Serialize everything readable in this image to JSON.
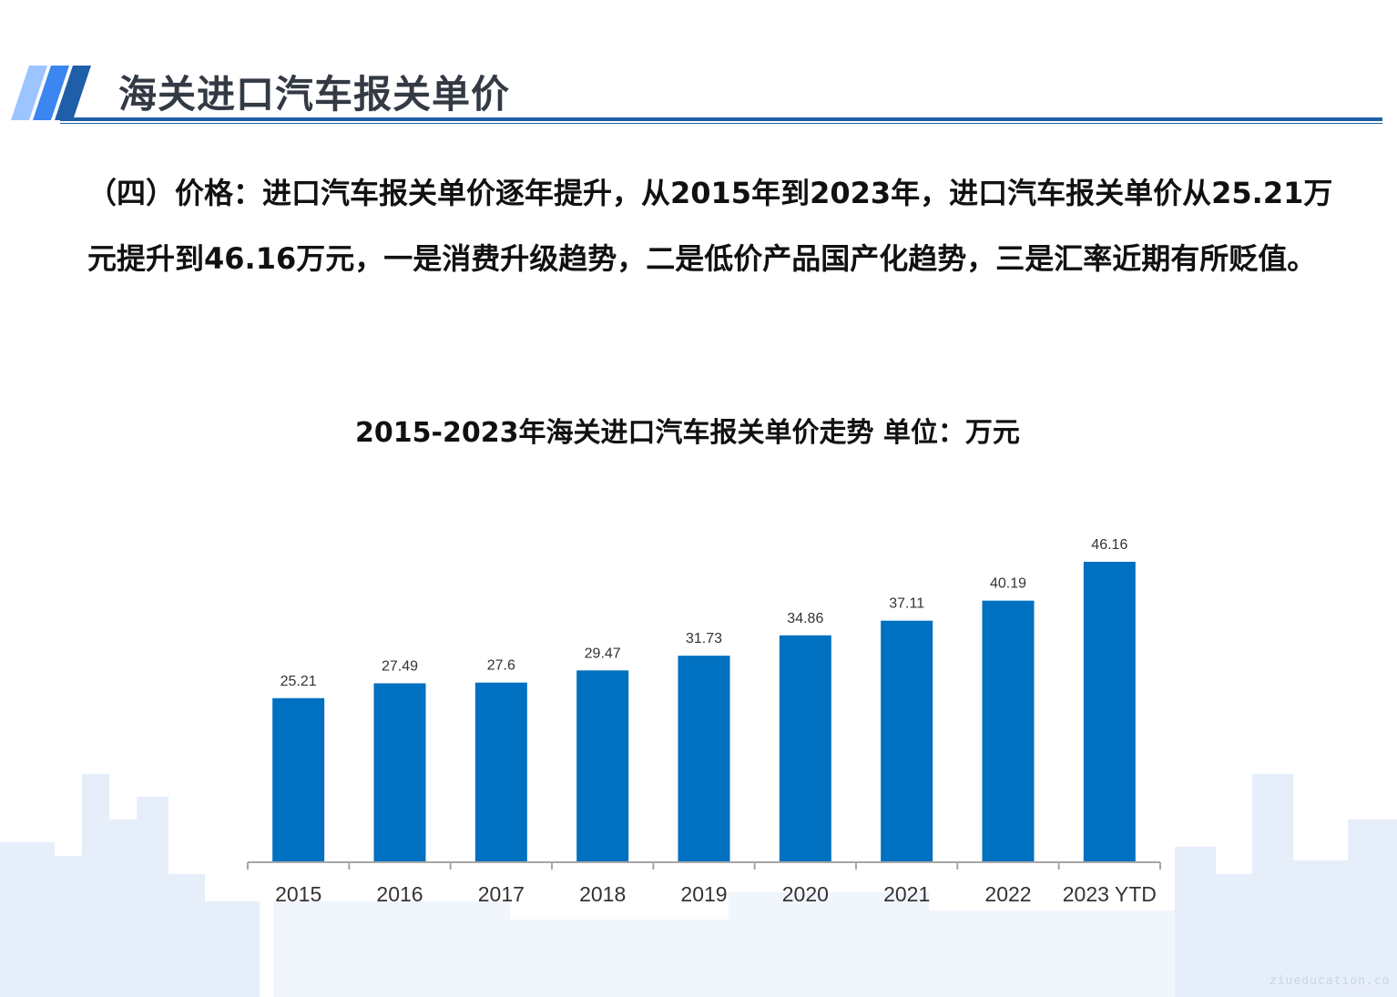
{
  "page": {
    "title": "海关进口汽车报关单价",
    "paragraph": "（四）价格：进口汽车报关单价逐年提升，从2015年到2023年，进口汽车报关单价从25.21万元提升到46.16万元，一是消费升级趋势，二是低价产品国产化趋势，三是汇率近期有所贬值。",
    "watermark": "ziueducation.co",
    "accent_color": "#1f5ea8"
  },
  "chart_data": {
    "type": "bar",
    "title": "2015-2023年海关进口汽车报关单价走势  单位：万元",
    "categories": [
      "2015",
      "2016",
      "2017",
      "2018",
      "2019",
      "2020",
      "2021",
      "2022",
      "2023 YTD"
    ],
    "series": [
      {
        "values": [
          25.21,
          27.49,
          27.6,
          29.47,
          31.73,
          34.86,
          37.11,
          40.19,
          46.16
        ]
      }
    ],
    "data_labels": [
      "25.21",
      "27.49",
      "27.6",
      "29.47",
      "31.73",
      "34.86",
      "37.11",
      "40.19",
      "46.16"
    ],
    "ylim": [
      0,
      46.16
    ],
    "grid": false,
    "bar_color": "#0070c0"
  }
}
